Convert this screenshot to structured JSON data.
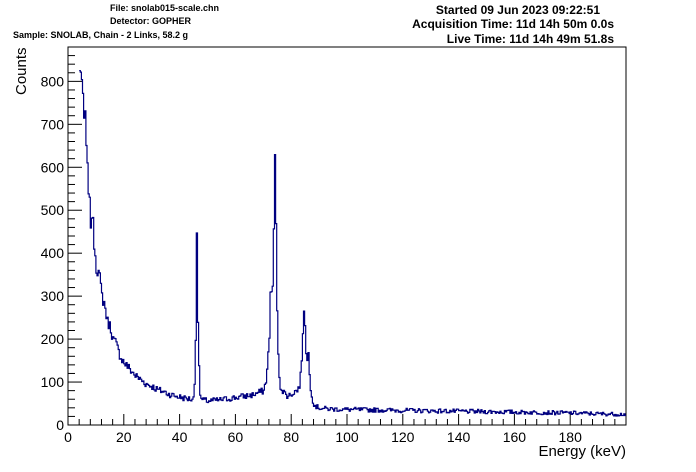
{
  "header": {
    "file": "File: snolab015-scale.chn",
    "detector": "Detector: GOPHER",
    "sample": "Sample: SNOLAB, Chain - 2 Links, 58.2 g",
    "started": "Started 09 Jun 2023 09:22:51",
    "acquisition": "Acquisition Time: 11d 14h 50m 0.0s",
    "live": "Live Time: 11d 14h 49m 51.8s"
  },
  "chart_data": {
    "type": "line",
    "xlabel": "Energy (keV)",
    "ylabel": "Counts",
    "xlim": [
      0,
      200
    ],
    "ylim": [
      0,
      880
    ],
    "xticks": [
      "0",
      "20",
      "40",
      "60",
      "80",
      "100",
      "120",
      "140",
      "160",
      "180"
    ],
    "yticks": [
      "0",
      "100",
      "200",
      "300",
      "400",
      "500",
      "600",
      "700",
      "800"
    ],
    "line_color": "#000080",
    "grid": false,
    "legend": "none",
    "series": [
      {
        "x": [
          4,
          4.5,
          5,
          5.5,
          6,
          6.5,
          7,
          7.5,
          8,
          8.5,
          9,
          10,
          11,
          12,
          13,
          14,
          15,
          16,
          17,
          18,
          19,
          20,
          22,
          24,
          26,
          28,
          30,
          32,
          34,
          36,
          38,
          40,
          42,
          44,
          45,
          45.5,
          46,
          46.5,
          47,
          47.5,
          48,
          50,
          54,
          58,
          62,
          66,
          70,
          71,
          72,
          72.5,
          73,
          73.5,
          74,
          74.5,
          75,
          75.5,
          76,
          77,
          78,
          79,
          80,
          81,
          82,
          83,
          84,
          84.5,
          85,
          85.5,
          86,
          86.5,
          87,
          87.5,
          88,
          89,
          90,
          92,
          95,
          100,
          110,
          120,
          130,
          140,
          150,
          160,
          170,
          180,
          190,
          200
        ],
        "y": [
          820,
          835,
          780,
          700,
          730,
          610,
          580,
          520,
          470,
          500,
          440,
          370,
          350,
          300,
          280,
          240,
          230,
          200,
          190,
          170,
          155,
          145,
          130,
          115,
          105,
          95,
          90,
          82,
          78,
          72,
          68,
          65,
          62,
          60,
          62,
          150,
          450,
          200,
          80,
          62,
          58,
          56,
          58,
          62,
          66,
          70,
          80,
          110,
          200,
          355,
          260,
          420,
          615,
          420,
          180,
          120,
          90,
          78,
          70,
          68,
          72,
          78,
          80,
          95,
          200,
          295,
          200,
          140,
          170,
          100,
          80,
          60,
          48,
          42,
          40,
          38,
          37,
          36,
          35,
          34,
          33,
          32,
          31,
          30,
          29,
          28,
          26,
          25
        ]
      }
    ]
  }
}
